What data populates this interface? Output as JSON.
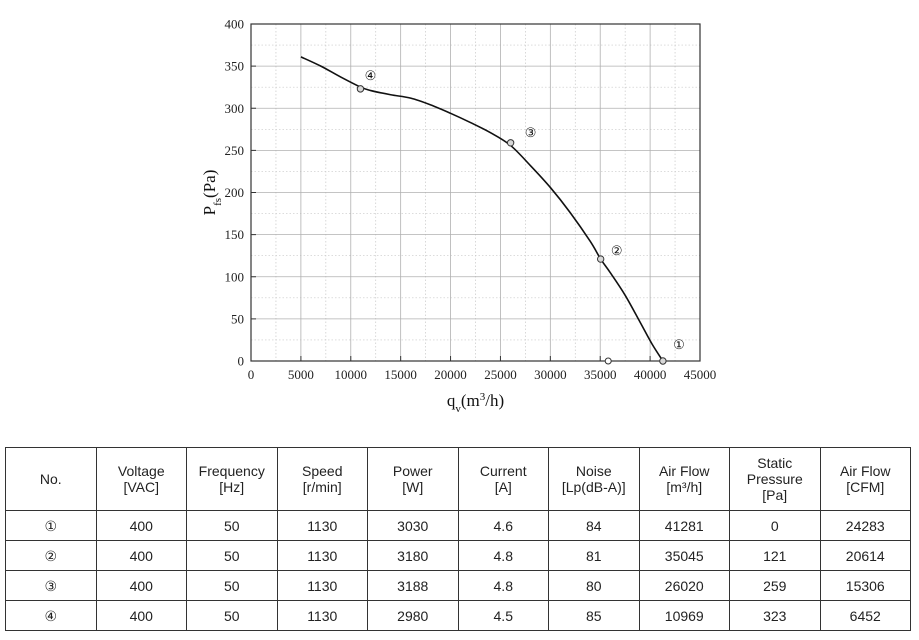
{
  "chart_data": {
    "type": "line",
    "xlabel": {
      "main": "q",
      "sub": "v",
      "unit": "(m",
      "sup": "3",
      "tail": "/h)"
    },
    "ylabel": {
      "main": "P",
      "sub": "fs",
      "tail": "(Pa)"
    },
    "xlim": [
      0,
      45000
    ],
    "ylim": [
      0,
      400
    ],
    "xticks": [
      0,
      5000,
      10000,
      15000,
      20000,
      25000,
      30000,
      35000,
      40000,
      45000
    ],
    "yticks": [
      0,
      50,
      100,
      150,
      200,
      250,
      300,
      350,
      400
    ],
    "grid": true,
    "curve": [
      [
        5000,
        361
      ],
      [
        7000,
        350
      ],
      [
        9000,
        337
      ],
      [
        11000,
        325
      ],
      [
        12000,
        321
      ],
      [
        14000,
        316
      ],
      [
        16000,
        312
      ],
      [
        18000,
        304
      ],
      [
        20000,
        294
      ],
      [
        22000,
        283
      ],
      [
        24000,
        271
      ],
      [
        26000,
        256
      ],
      [
        28000,
        232
      ],
      [
        30000,
        206
      ],
      [
        32000,
        176
      ],
      [
        34000,
        142
      ],
      [
        35045,
        121
      ],
      [
        36000,
        105
      ],
      [
        37500,
        78
      ],
      [
        39000,
        46
      ],
      [
        40200,
        20
      ],
      [
        41281,
        0
      ]
    ],
    "points": [
      {
        "label": "①",
        "x": 41281,
        "y": 0
      },
      {
        "label": "②",
        "x": 35045,
        "y": 121
      },
      {
        "label": "③",
        "x": 26020,
        "y": 259
      },
      {
        "label": "④",
        "x": 10969,
        "y": 323
      }
    ],
    "extra_marker": {
      "x": 35800,
      "y": 0
    }
  },
  "table": {
    "headers": [
      [
        "No."
      ],
      [
        "Voltage",
        "[VAC]"
      ],
      [
        "Frequency",
        "[Hz]"
      ],
      [
        "Speed",
        "[r/min]"
      ],
      [
        "Power",
        "[W]"
      ],
      [
        "Current",
        "[A]"
      ],
      [
        "Noise",
        "[Lp(dB-A)]"
      ],
      [
        "Air Flow",
        "[m³/h]"
      ],
      [
        "Static",
        "Pressure",
        "[Pa]"
      ],
      [
        "Air Flow",
        "[CFM]"
      ]
    ],
    "rows": [
      [
        "①",
        "400",
        "50",
        "1130",
        "3030",
        "4.6",
        "84",
        "41281",
        "0",
        "24283"
      ],
      [
        "②",
        "400",
        "50",
        "1130",
        "3180",
        "4.8",
        "81",
        "35045",
        "121",
        "20614"
      ],
      [
        "③",
        "400",
        "50",
        "1130",
        "3188",
        "4.8",
        "80",
        "26020",
        "259",
        "15306"
      ],
      [
        "④",
        "400",
        "50",
        "1130",
        "2980",
        "4.5",
        "85",
        "10969",
        "323",
        "6452"
      ]
    ]
  }
}
